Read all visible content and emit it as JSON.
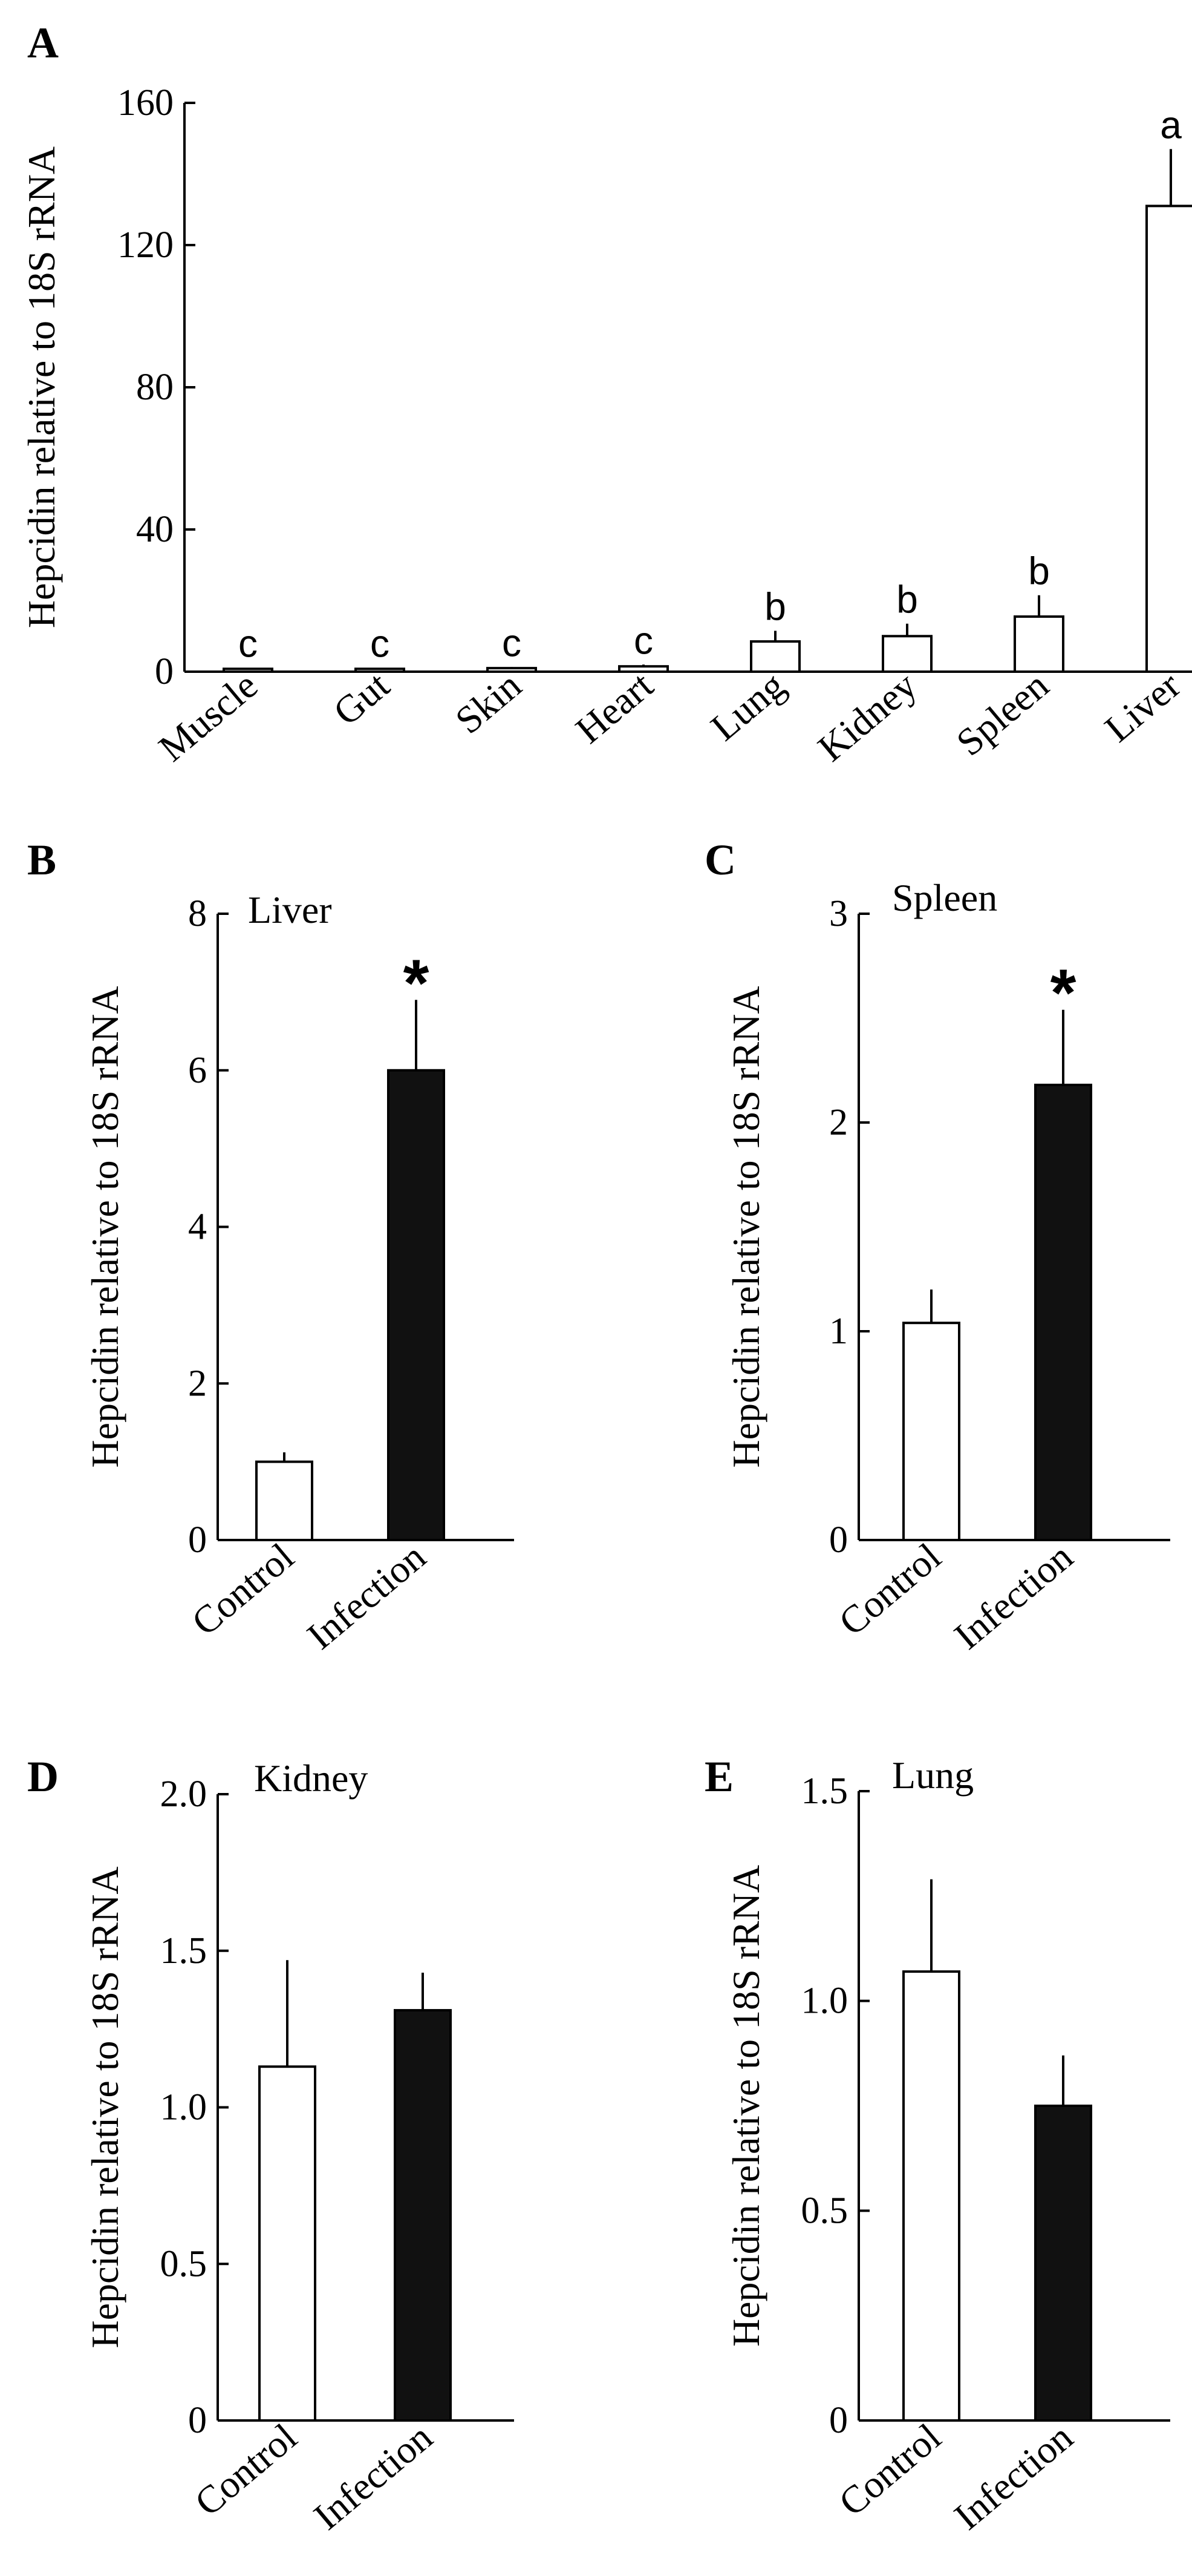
{
  "chart_data": [
    {
      "panel": "A",
      "type": "bar",
      "title": "",
      "xlabel": "",
      "ylabel": "Hepcidin relative to 18S rRNA",
      "ylim": [
        0,
        160
      ],
      "yticks": [
        "0",
        "40",
        "80",
        "120",
        "160"
      ],
      "yticks_values": [
        0,
        40,
        80,
        120,
        160
      ],
      "categories": [
        "Muscle",
        "Gut",
        "Skin",
        "Heart",
        "Lung",
        "Kidney",
        "Spleen",
        "Liver"
      ],
      "values": [
        0.8,
        0.8,
        1.0,
        1.5,
        8.5,
        10,
        15.5,
        131
      ],
      "errors": [
        0.3,
        0.3,
        0.3,
        0.5,
        3.0,
        3.5,
        6.0,
        16
      ],
      "significance": [
        "c",
        "c",
        "c",
        "c",
        "b",
        "b",
        "b",
        "a"
      ],
      "bar_colors": [
        "#ffffff",
        "#ffffff",
        "#ffffff",
        "#ffffff",
        "#ffffff",
        "#ffffff",
        "#ffffff",
        "#ffffff"
      ]
    },
    {
      "panel": "B",
      "type": "bar",
      "title": "Liver",
      "xlabel": "",
      "ylabel": "Hepcidin relative to 18S rRNA",
      "ylim": [
        0,
        8
      ],
      "yticks": [
        "0",
        "2",
        "4",
        "6",
        "8"
      ],
      "yticks_values": [
        0,
        2,
        4,
        6,
        8
      ],
      "categories": [
        "Control",
        "Infection"
      ],
      "values": [
        1.0,
        6.0
      ],
      "errors": [
        0.12,
        0.9
      ],
      "significance": [
        "",
        "*"
      ],
      "bar_colors": [
        "#ffffff",
        "#111111"
      ]
    },
    {
      "panel": "C",
      "type": "bar",
      "title": "Spleen",
      "xlabel": "",
      "ylabel": "Hepcidin relative to 18S rRNA",
      "ylim": [
        0,
        3
      ],
      "yticks": [
        "0",
        "1",
        "2",
        "3"
      ],
      "yticks_values": [
        0,
        1,
        2,
        3
      ],
      "categories": [
        "Control",
        "Infection"
      ],
      "values": [
        1.04,
        2.18
      ],
      "errors": [
        0.16,
        0.36
      ],
      "significance": [
        "",
        "*"
      ],
      "bar_colors": [
        "#ffffff",
        "#111111"
      ]
    },
    {
      "panel": "D",
      "type": "bar",
      "title": "Kidney",
      "xlabel": "",
      "ylabel": "Hepcidin relative to 18S rRNA",
      "ylim": [
        0,
        2.0
      ],
      "yticks": [
        "0",
        "0.5",
        "1.0",
        "1.5",
        "2.0"
      ],
      "yticks_values": [
        0,
        0.5,
        1.0,
        1.5,
        2.0
      ],
      "categories": [
        "Control",
        "Infection"
      ],
      "values": [
        1.13,
        1.31
      ],
      "errors": [
        0.34,
        0.12
      ],
      "significance": [
        "",
        ""
      ],
      "bar_colors": [
        "#ffffff",
        "#111111"
      ]
    },
    {
      "panel": "E",
      "type": "bar",
      "title": "Lung",
      "xlabel": "",
      "ylabel": "Hepcidin relative to 18S rRNA",
      "ylim": [
        0,
        1.5
      ],
      "yticks": [
        "0",
        "0.5",
        "1.0",
        "1.5"
      ],
      "yticks_values": [
        0,
        0.5,
        1.0,
        1.5
      ],
      "categories": [
        "Control",
        "Infection"
      ],
      "values": [
        1.07,
        0.75
      ],
      "errors": [
        0.22,
        0.12
      ],
      "significance": [
        "",
        ""
      ],
      "bar_colors": [
        "#ffffff",
        "#111111"
      ]
    }
  ]
}
